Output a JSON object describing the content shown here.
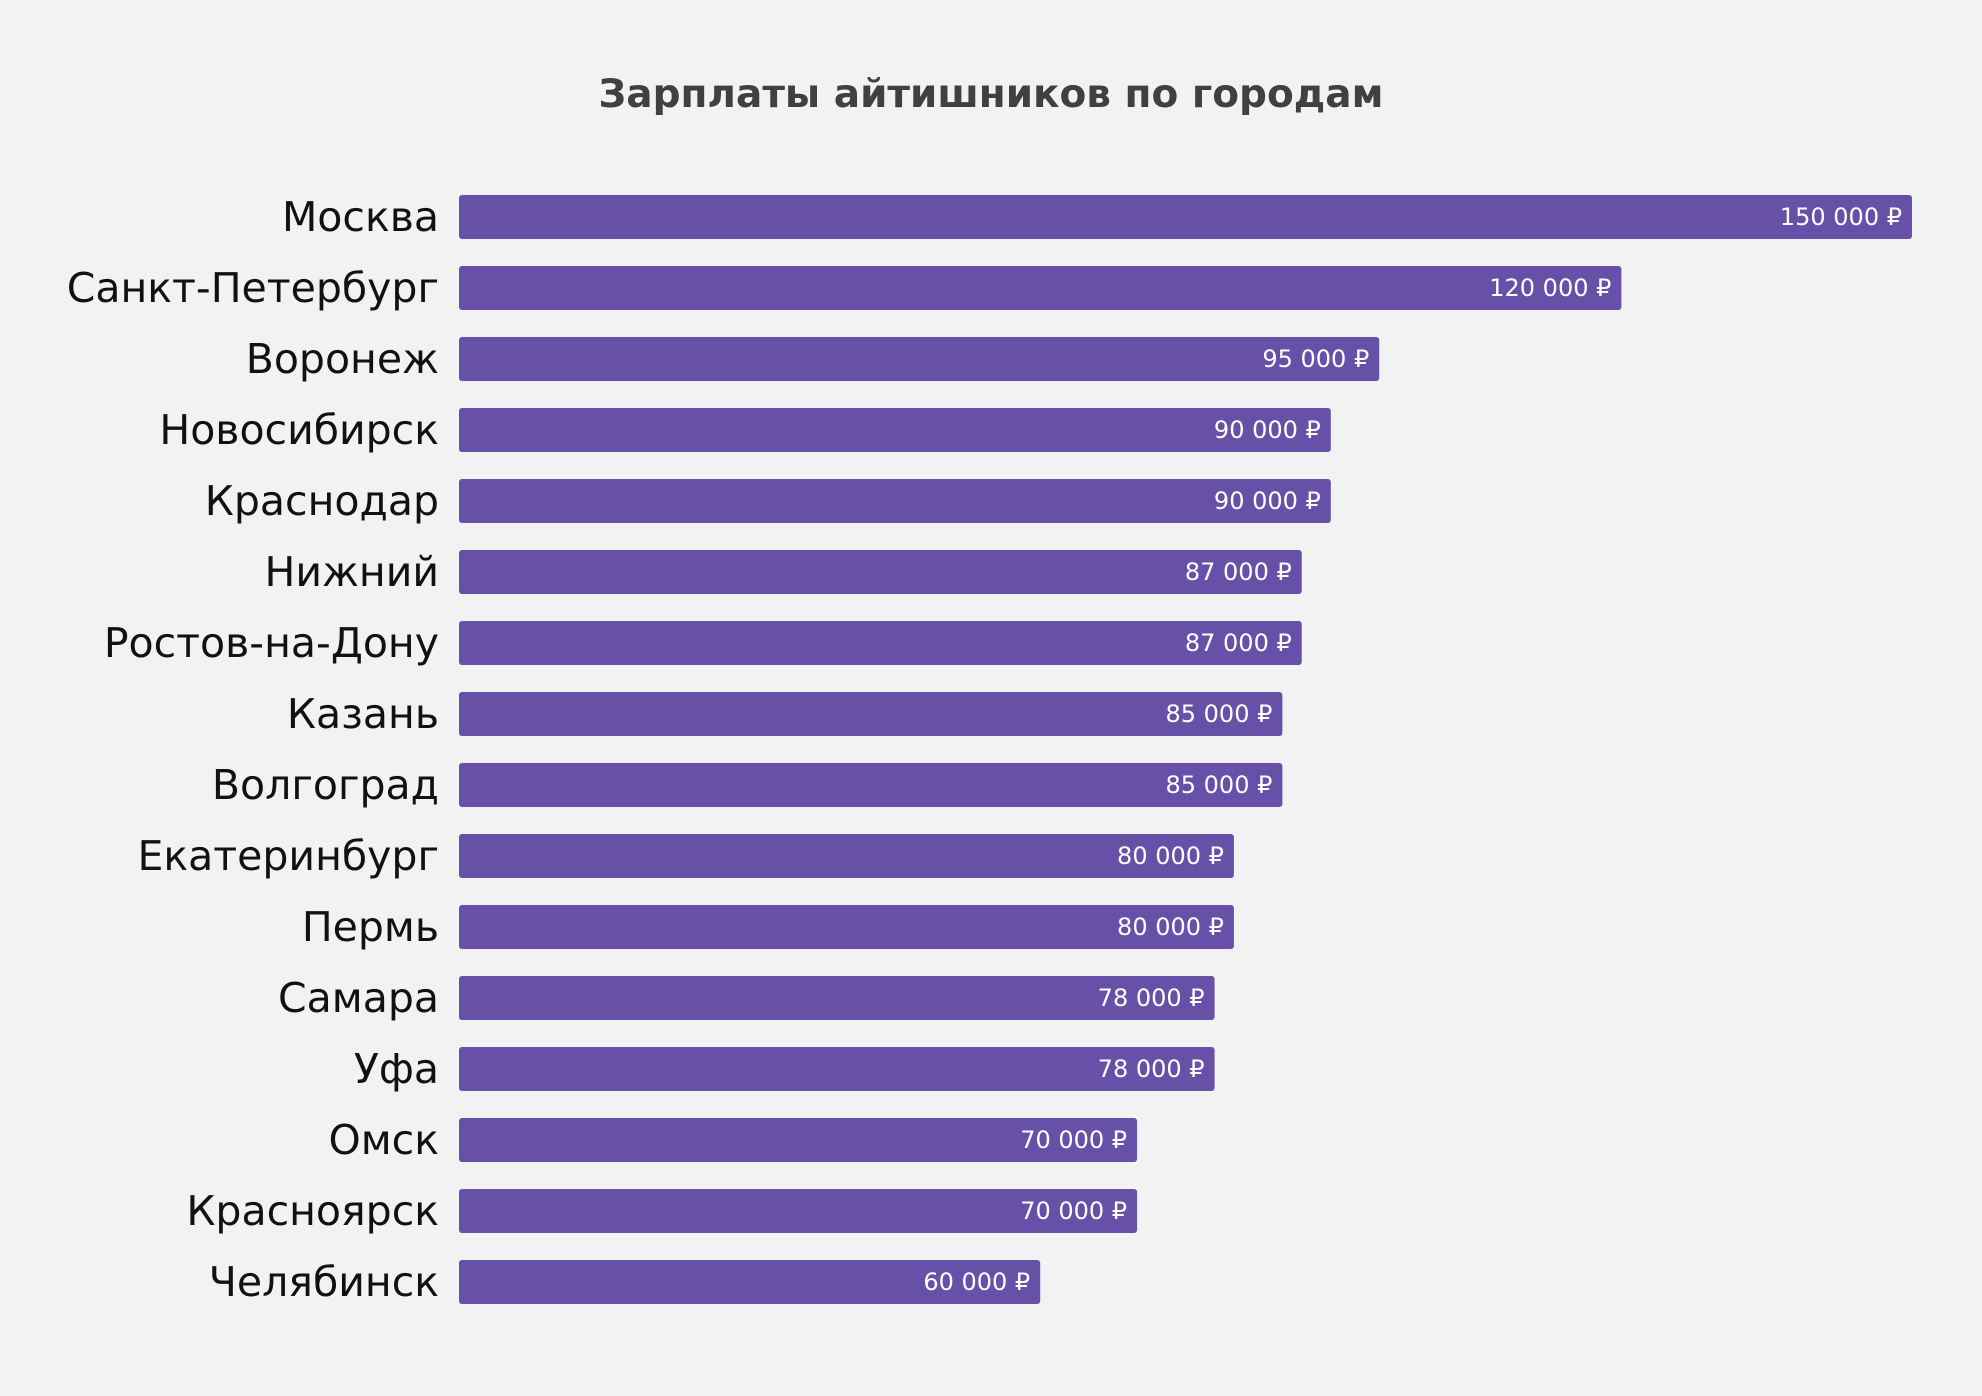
{
  "chart_data": {
    "type": "bar",
    "orientation": "horizontal",
    "title": "Зарплаты айтишников по городам",
    "xlabel": "",
    "ylabel": "",
    "grid": false,
    "legend": "none",
    "xlim": [
      0,
      150000
    ],
    "currency_suffix": " ₽",
    "bar_color": "#6750a8",
    "background_color": "#f2f2f2",
    "categories": [
      "Москва",
      "Санкт-Петербург",
      "Воронеж",
      "Новосибирск",
      "Краснодар",
      "Нижний",
      "Ростов-на-Дону",
      "Казань",
      "Волгоград",
      "Екатеринбург",
      "Пермь",
      "Самара",
      "Уфа",
      "Омск",
      "Красноярск",
      "Челябинск"
    ],
    "values": [
      150000,
      120000,
      95000,
      90000,
      90000,
      87000,
      87000,
      85000,
      85000,
      80000,
      80000,
      78000,
      78000,
      70000,
      70000,
      60000
    ],
    "value_labels": [
      "150 000 ₽",
      "120 000 ₽",
      "95 000 ₽",
      "90 000 ₽",
      "90 000 ₽",
      "87 000 ₽",
      "87 000 ₽",
      "85 000 ₽",
      "85 000 ₽",
      "80 000 ₽",
      "80 000 ₽",
      "78 000 ₽",
      "78 000 ₽",
      "70 000 ₽",
      "70 000 ₽",
      "60 000 ₽"
    ]
  }
}
